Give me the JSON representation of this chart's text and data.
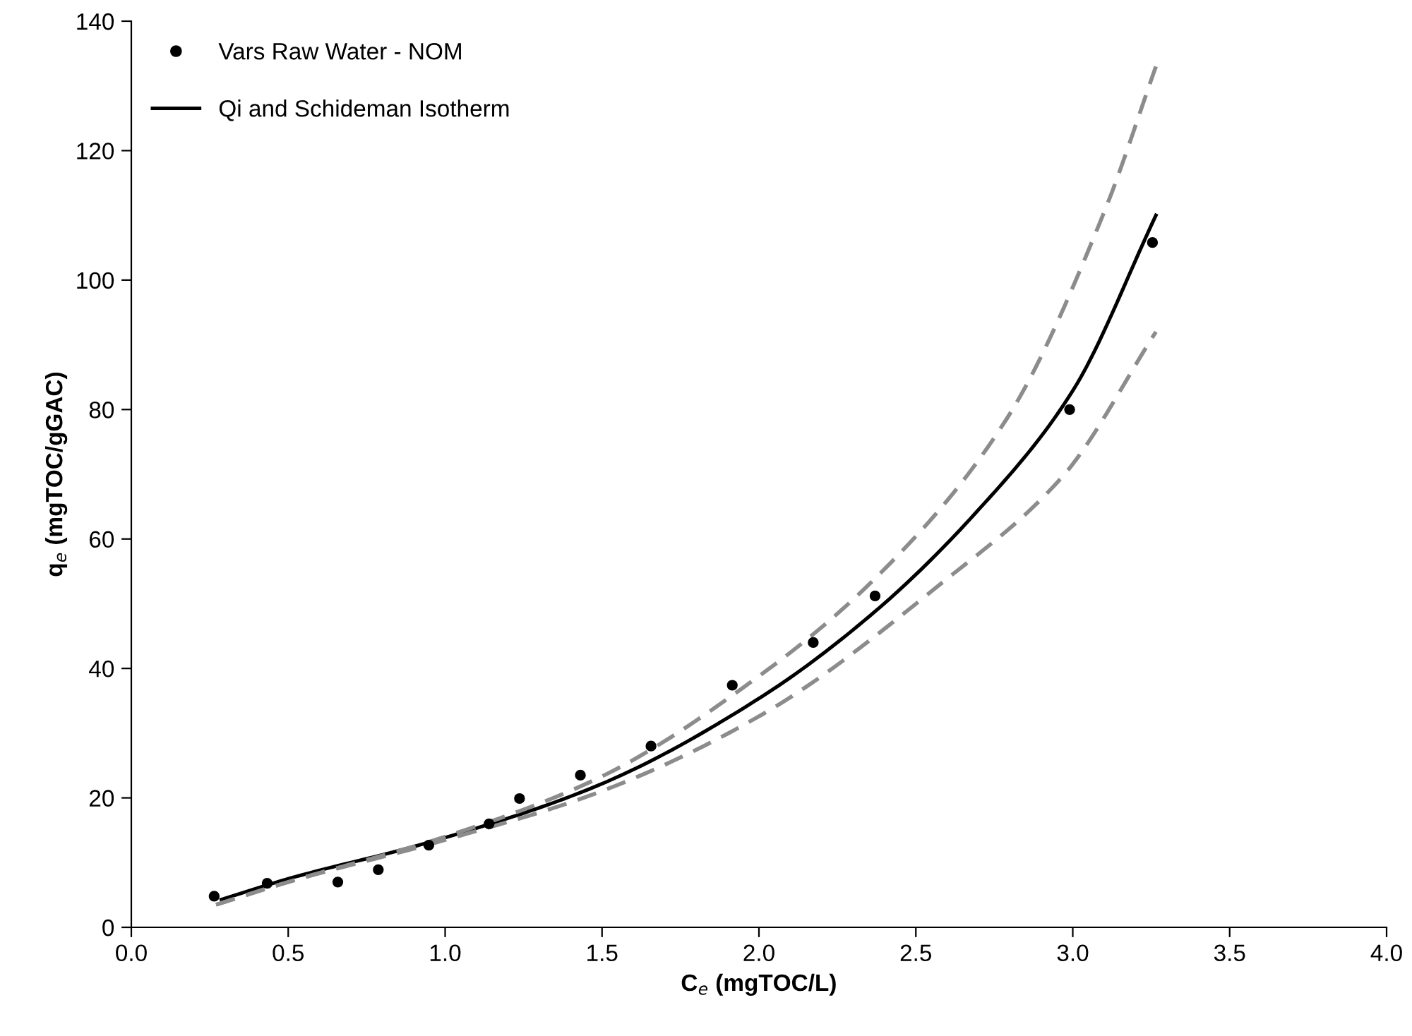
{
  "chart_data": {
    "type": "scatter",
    "xlabel": "C$_{e}$ (mgTOC/L)",
    "ylabel": "q$_{e}$ (mgTOC/gGAC)",
    "xlim": [
      0,
      4
    ],
    "xticks": [
      {
        "value": 0,
        "label": "0.0"
      },
      {
        "value": 0.5,
        "label": "0.5"
      },
      {
        "value": 1,
        "label": "1.0"
      },
      {
        "value": 1.5,
        "label": "1.5"
      },
      {
        "value": 2,
        "label": "2.0"
      },
      {
        "value": 2.5,
        "label": "2.5"
      },
      {
        "value": 3,
        "label": "3.0"
      },
      {
        "value": 3.5,
        "label": "3.5"
      },
      {
        "value": 4,
        "label": "4.0"
      }
    ],
    "ylim": [
      0,
      140
    ],
    "yticks": [
      0,
      20,
      40,
      60,
      80,
      100,
      120,
      140
    ],
    "grid": false,
    "legend": "top left",
    "series": [
      {
        "name": "Vars Raw Water - NOM",
        "marker": "circle",
        "color": "#000000",
        "x": [
          0.264,
          0.433,
          0.658,
          0.787,
          0.948,
          1.14,
          1.237,
          1.431,
          1.656,
          1.915,
          2.173,
          2.37,
          2.99,
          3.254
        ],
        "values": [
          4.8,
          6.8,
          7.0,
          8.9,
          12.7,
          16.0,
          19.9,
          23.5,
          28.0,
          37.4,
          44.0,
          51.2,
          80.0,
          105.8
        ]
      },
      {
        "name": "Qi and Schideman Isotherm",
        "type": "line",
        "line_style": "solid",
        "color": "#000000",
        "x": [
          0.287,
          0.5,
          0.946,
          1.486,
          2.011,
          2.37,
          2.69,
          3.0,
          3.265
        ],
        "values": [
          4.3,
          7.5,
          13.1,
          21.9,
          35.7,
          48.8,
          64.0,
          82.9,
          110.0
        ]
      },
      {
        "type": "line",
        "line_style": "dashed",
        "color": "#8c8c8c",
        "x": [
          0.27,
          0.5,
          1.0,
          1.486,
          2.011,
          2.37,
          2.79,
          3.1,
          3.265
        ],
        "values": [
          3.5,
          7.0,
          14.0,
          23.0,
          39.2,
          53.9,
          78.6,
          110.5,
          133.0
        ]
      },
      {
        "type": "line",
        "line_style": "dashed",
        "color": "#8c8c8c",
        "x": [
          0.27,
          0.5,
          1.0,
          1.486,
          2.011,
          2.58,
          2.97,
          3.265
        ],
        "values": [
          3.5,
          7.0,
          13.5,
          20.8,
          32.9,
          53.1,
          69.8,
          92.0
        ]
      }
    ]
  }
}
